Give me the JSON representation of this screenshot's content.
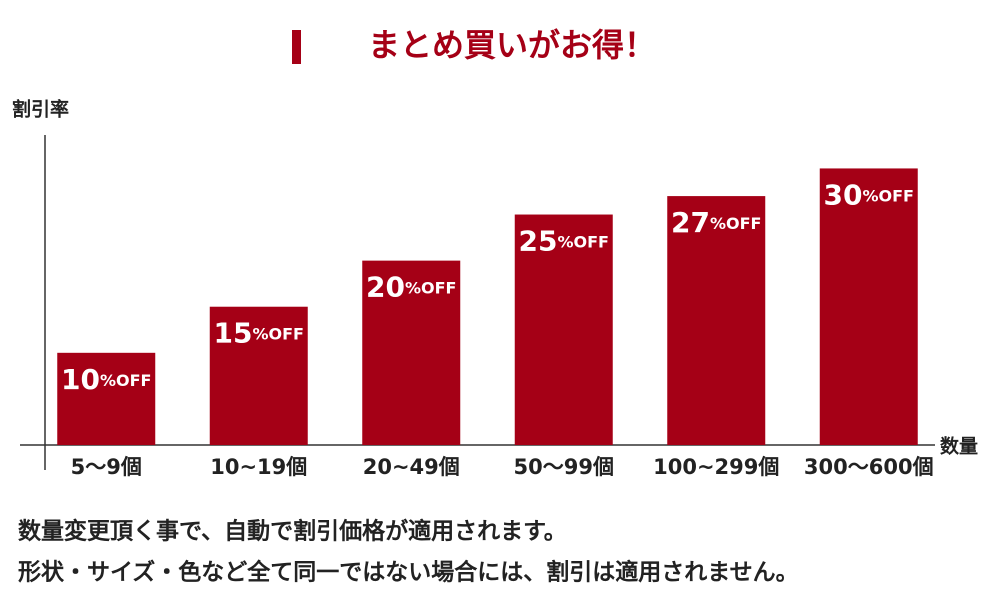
{
  "chart_data": {
    "type": "bar",
    "title": "まとめ買いがお得！",
    "y_label": "割引率",
    "x_label": "数量",
    "categories": [
      "5〜9個",
      "10~19個",
      "20~49個",
      "50〜99個",
      "100~299個",
      "300〜600個"
    ],
    "values": [
      10,
      15,
      20,
      25,
      27,
      30
    ],
    "value_labels": [
      "10%OFF",
      "15%OFF",
      "20%OFF",
      "25%OFF",
      "27%OFF",
      "30%OFF"
    ],
    "color": "#a50016",
    "ylim": [
      0,
      32
    ]
  },
  "notes": [
    "数量変更頂く事で、自動で割引価格が適用されます。",
    "形状・サイズ・色など全て同一ではない場合には、割引は適用されません。"
  ]
}
